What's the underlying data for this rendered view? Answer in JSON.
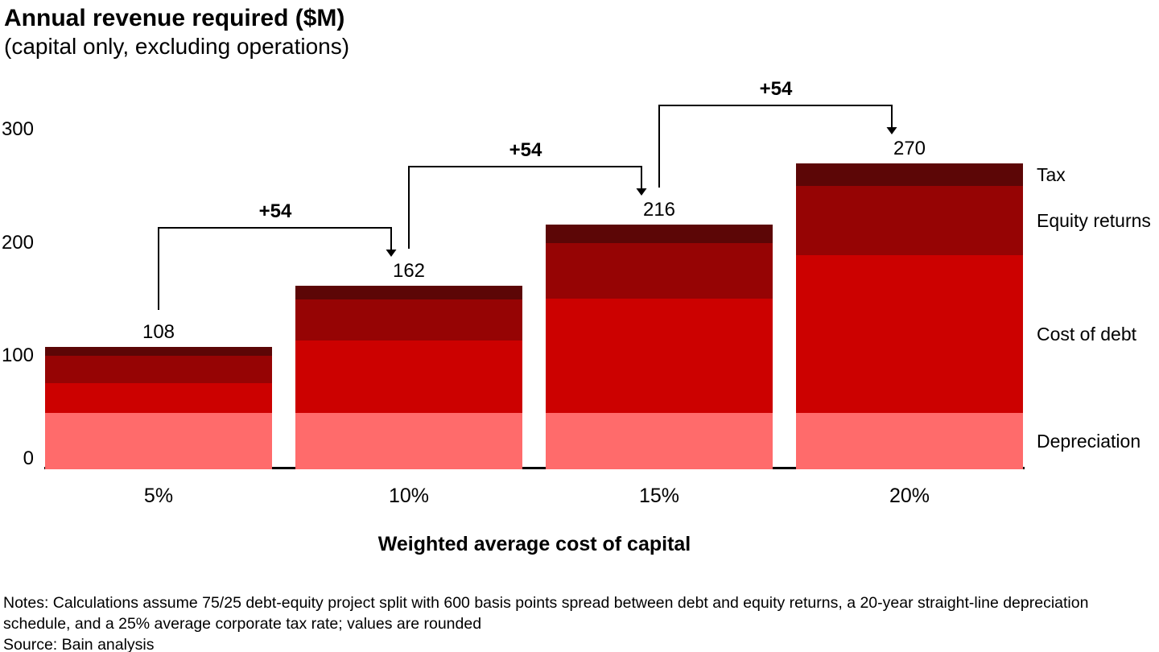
{
  "header": {
    "title": "Annual revenue required ($M)",
    "subtitle": "(capital only, excluding operations)"
  },
  "chart_data": {
    "type": "bar",
    "stacked": true,
    "title": "Annual revenue required ($M)",
    "subtitle": "(capital only, excluding operations)",
    "xlabel": "Weighted average cost of capital",
    "ylabel": "",
    "ylim": [
      0,
      300
    ],
    "yticks": [
      0,
      100,
      200,
      300
    ],
    "grid": false,
    "legend_position": "right",
    "categories": [
      "5%",
      "10%",
      "15%",
      "20%"
    ],
    "series": [
      {
        "name": "Depreciation",
        "color": "#ff6b6b",
        "values": [
          50,
          50,
          50,
          50
        ]
      },
      {
        "name": "Cost of debt",
        "color": "#cc0100",
        "values": [
          26,
          64,
          101,
          139
        ]
      },
      {
        "name": "Equity returns",
        "color": "#960404",
        "values": [
          24,
          36,
          49,
          61
        ]
      },
      {
        "name": "Tax",
        "color": "#5c0606",
        "values": [
          8,
          12,
          16,
          20
        ]
      }
    ],
    "totals": [
      108,
      162,
      216,
      270
    ],
    "delta_annotations": [
      {
        "from_index": 0,
        "to_index": 1,
        "label": "+54"
      },
      {
        "from_index": 1,
        "to_index": 2,
        "label": "+54"
      },
      {
        "from_index": 2,
        "to_index": 3,
        "label": "+54"
      }
    ],
    "annotation_color": "#000000",
    "axis_color": "#000000"
  },
  "notes": {
    "text": "Notes: Calculations assume 75/25 debt-equity project split with 600 basis points spread between debt and equity returns, a 20-year straight-line depreciation schedule, and a 25% average corporate tax rate; values are rounded",
    "source": "Source: Bain analysis"
  }
}
